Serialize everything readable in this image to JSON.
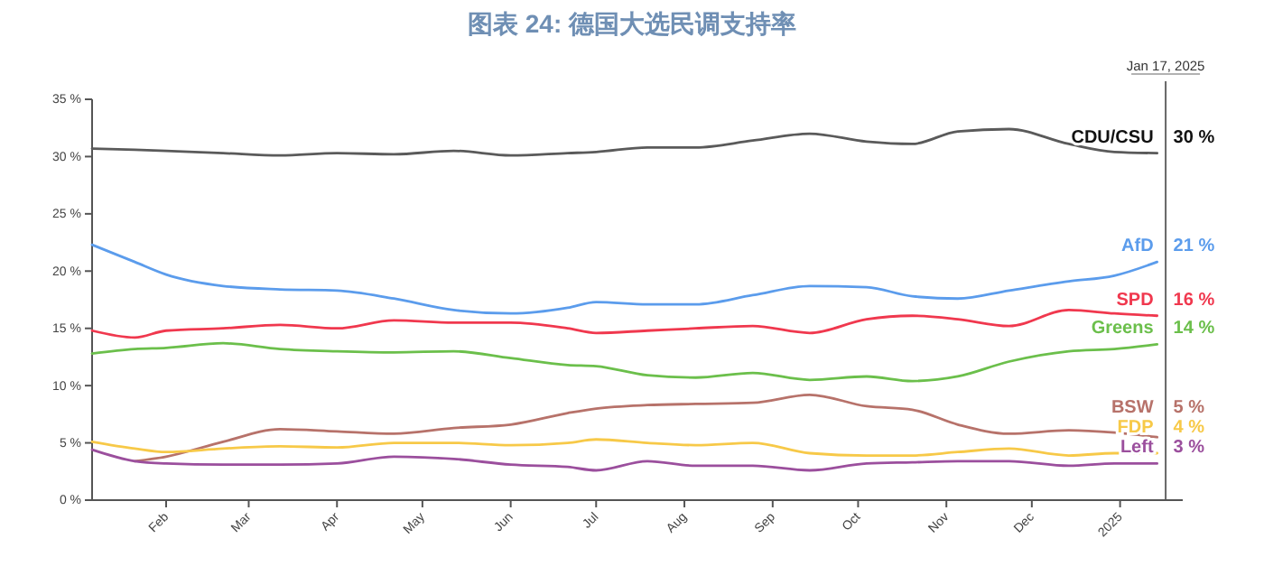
{
  "chart_data": {
    "type": "line",
    "title": "图表 24: 德国大选民调支持率",
    "x": [
      "2024-01-06",
      "2024-01-21",
      "2024-02-01",
      "2024-02-21",
      "2024-03-12",
      "2024-04-01",
      "2024-04-21",
      "2024-05-12",
      "2024-06-01",
      "2024-06-21",
      "2024-07-01",
      "2024-07-19",
      "2024-08-05",
      "2024-08-25",
      "2024-09-14",
      "2024-10-04",
      "2024-10-20",
      "2024-11-05",
      "2024-11-23",
      "2024-12-14",
      "2024-12-30",
      "2025-01-14"
    ],
    "series": [
      {
        "name": "CDU/CSU",
        "color": "#5a5a5a",
        "values": [
          30.7,
          30.6,
          30.5,
          30.3,
          30.1,
          30.3,
          30.2,
          30.5,
          30.1,
          30.3,
          30.4,
          30.8,
          30.8,
          31.4,
          32.0,
          31.3,
          31.1,
          32.2,
          32.4,
          31.1,
          30.4,
          30.3
        ],
        "value_labels": [
          null,
          null,
          null,
          null,
          null,
          null,
          null,
          null,
          null,
          null,
          null,
          null,
          null,
          null,
          null,
          null,
          null,
          null,
          null,
          null,
          null,
          "30 %"
        ]
      },
      {
        "name": "AfD",
        "color": "#5b9cec",
        "values": [
          22.3,
          20.8,
          19.7,
          18.7,
          18.4,
          18.3,
          17.6,
          16.6,
          16.3,
          16.8,
          17.3,
          17.1,
          17.1,
          17.9,
          18.7,
          18.6,
          17.8,
          17.6,
          18.3,
          19.1,
          19.6,
          20.8
        ],
        "value_labels": [
          null,
          null,
          null,
          null,
          null,
          null,
          null,
          null,
          null,
          null,
          null,
          null,
          null,
          null,
          null,
          null,
          null,
          null,
          null,
          null,
          null,
          "21 %"
        ]
      },
      {
        "name": "SPD",
        "color": "#f0384e",
        "values": [
          14.8,
          14.2,
          14.8,
          15.0,
          15.3,
          15.0,
          15.7,
          15.5,
          15.5,
          15.0,
          14.6,
          14.8,
          15.0,
          15.2,
          14.6,
          15.8,
          16.1,
          15.8,
          15.2,
          16.6,
          16.3,
          16.1
        ],
        "value_labels": [
          null,
          null,
          null,
          null,
          null,
          null,
          null,
          null,
          null,
          null,
          null,
          null,
          null,
          null,
          null,
          null,
          null,
          null,
          null,
          null,
          null,
          "16 %"
        ]
      },
      {
        "name": "Greens",
        "color": "#6bbf4b",
        "values": [
          12.8,
          13.2,
          13.3,
          13.7,
          13.2,
          13.0,
          12.9,
          13.0,
          12.4,
          11.8,
          11.7,
          10.9,
          10.7,
          11.1,
          10.5,
          10.8,
          10.4,
          10.8,
          12.1,
          13.0,
          13.2,
          13.6
        ],
        "value_labels": [
          null,
          null,
          null,
          null,
          null,
          null,
          null,
          null,
          null,
          null,
          null,
          null,
          null,
          null,
          null,
          null,
          null,
          null,
          null,
          null,
          null,
          "14 %"
        ]
      },
      {
        "name": "BSW",
        "color": "#b7726a",
        "values": [
          null,
          3.4,
          3.8,
          5.1,
          6.2,
          6.0,
          5.8,
          6.3,
          6.6,
          7.6,
          8.0,
          8.3,
          8.4,
          8.5,
          9.2,
          8.2,
          7.9,
          6.6,
          5.8,
          6.1,
          5.9,
          5.5
        ],
        "value_labels": [
          null,
          null,
          null,
          null,
          null,
          null,
          null,
          null,
          null,
          null,
          null,
          null,
          null,
          null,
          null,
          null,
          null,
          null,
          null,
          null,
          null,
          "5 %"
        ]
      },
      {
        "name": "FDP",
        "color": "#f7c948",
        "values": [
          5.1,
          4.5,
          4.2,
          4.5,
          4.7,
          4.6,
          5.0,
          5.0,
          4.8,
          5.0,
          5.3,
          5.0,
          4.8,
          5.0,
          4.1,
          3.9,
          3.9,
          4.2,
          4.5,
          3.9,
          4.1,
          4.1
        ],
        "value_labels": [
          null,
          null,
          null,
          null,
          null,
          null,
          null,
          null,
          null,
          null,
          null,
          null,
          null,
          null,
          null,
          null,
          null,
          null,
          null,
          null,
          null,
          "4 %"
        ]
      },
      {
        "name": "Left",
        "color": "#9b4f9d",
        "values": [
          4.4,
          3.4,
          3.2,
          3.1,
          3.1,
          3.2,
          3.8,
          3.6,
          3.1,
          2.9,
          2.6,
          3.4,
          3.0,
          3.0,
          2.6,
          3.2,
          3.3,
          3.4,
          3.4,
          3.0,
          3.2,
          3.2
        ],
        "value_labels": [
          null,
          null,
          null,
          null,
          null,
          null,
          null,
          null,
          null,
          null,
          null,
          null,
          null,
          null,
          null,
          null,
          null,
          null,
          null,
          null,
          null,
          "3 %"
        ]
      }
    ],
    "xlim": [
      "2024-01-06",
      "2025-01-23"
    ],
    "xticks": [
      {
        "value": "2024-02-01",
        "label": "Feb"
      },
      {
        "value": "2024-03-01",
        "label": "Mar"
      },
      {
        "value": "2024-04-01",
        "label": "Apr"
      },
      {
        "value": "2024-05-01",
        "label": "May"
      },
      {
        "value": "2024-06-01",
        "label": "Jun"
      },
      {
        "value": "2024-07-01",
        "label": "Jul"
      },
      {
        "value": "2024-08-01",
        "label": "Aug"
      },
      {
        "value": "2024-09-01",
        "label": "Sep"
      },
      {
        "value": "2024-10-01",
        "label": "Oct"
      },
      {
        "value": "2024-11-01",
        "label": "Nov"
      },
      {
        "value": "2024-12-01",
        "label": "Dec"
      },
      {
        "value": "2025-01-01",
        "label": "2025"
      }
    ],
    "ylim": [
      0,
      35
    ],
    "yticks": [
      {
        "value": 0,
        "label": "0 %"
      },
      {
        "value": 5,
        "label": "5 %"
      },
      {
        "value": 10,
        "label": "10 %"
      },
      {
        "value": 15,
        "label": "15 %"
      },
      {
        "value": 20,
        "label": "20 %"
      },
      {
        "value": 25,
        "label": "25 %"
      },
      {
        "value": 30,
        "label": "30 %"
      },
      {
        "value": 35,
        "label": "35 %"
      }
    ],
    "ref_lines": [
      {
        "axis": "x",
        "value": "2025-01-17",
        "label": "Jan 17, 2025",
        "color": "#666666"
      }
    ]
  }
}
